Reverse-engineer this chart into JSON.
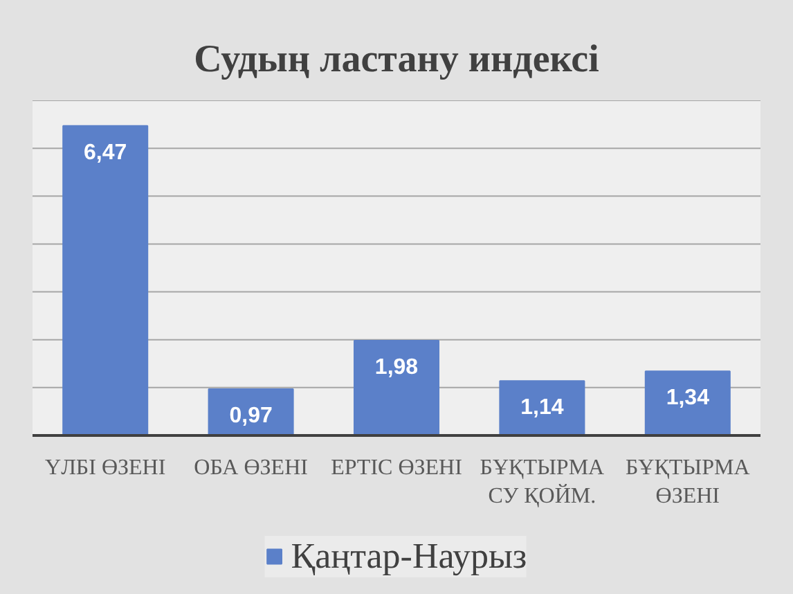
{
  "chart_data": {
    "type": "bar",
    "title": "Судың ластану индексі",
    "categories": [
      "ҮЛБІ ӨЗЕНІ",
      "ОБА ӨЗЕНІ",
      "ЕРТІС ӨЗЕНІ",
      "БҰҚТЫРМА СУ ҚОЙМ.",
      "БҰҚТЫРМА ӨЗЕНІ"
    ],
    "series": [
      {
        "name": "Қаңтар-Наурыз",
        "color": "#5b80c9",
        "values": [
          6.47,
          0.97,
          1.98,
          1.14,
          1.34
        ],
        "value_labels": [
          "6,47",
          "0,97",
          "1,98",
          "1,14",
          "1,34"
        ]
      }
    ],
    "ylim": [
      0,
      7
    ],
    "yticks": [
      {
        "value": 0,
        "label": null
      },
      {
        "value": 1,
        "label": null
      },
      {
        "value": 2,
        "label": null
      },
      {
        "value": 3,
        "label": null
      },
      {
        "value": 4,
        "label": null
      },
      {
        "value": 5,
        "label": null
      },
      {
        "value": 6,
        "label": null
      },
      {
        "value": 7,
        "label": null
      }
    ],
    "grid": "y",
    "legend": "bottom",
    "tick_labels": "x"
  }
}
